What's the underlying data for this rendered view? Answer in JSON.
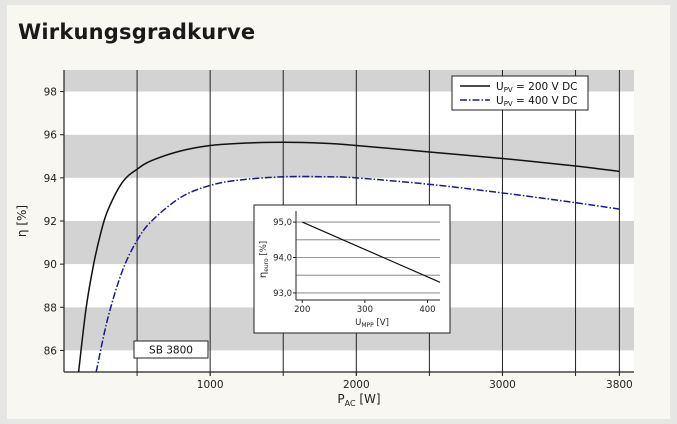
{
  "title": "Wirkungsgradkurve",
  "chart_data": [
    {
      "type": "line",
      "xlabel": "P",
      "xlabel_sub": "AC",
      "xlabel_unit": "[W]",
      "ylabel": "η [%]",
      "xlim": [
        0,
        3900
      ],
      "ylim": [
        85,
        99
      ],
      "xticks": [
        1000,
        2000,
        3000,
        3800
      ],
      "yticks": [
        86,
        88,
        90,
        92,
        94,
        96,
        98
      ],
      "grid": "vertical lines at 500 W steps, shaded horizontal bands",
      "legend": "top-right",
      "annotation": "SB 3800",
      "series": [
        {
          "name": "U_PV = 200 V DC",
          "label_main": "U",
          "label_sub": "PV",
          "label_rest": " = 200 V DC",
          "style": "solid",
          "color": "#111111",
          "x": [
            100,
            150,
            200,
            250,
            300,
            400,
            500,
            600,
            800,
            1000,
            1200,
            1500,
            1800,
            2000,
            2500,
            3000,
            3500,
            3800
          ],
          "y": [
            85.0,
            87.9,
            89.9,
            91.4,
            92.5,
            93.8,
            94.4,
            94.8,
            95.25,
            95.5,
            95.6,
            95.65,
            95.6,
            95.5,
            95.2,
            94.9,
            94.55,
            94.3
          ]
        },
        {
          "name": "U_PV = 400 V DC",
          "label_main": "U",
          "label_sub": "PV",
          "label_rest": " = 400 V DC",
          "style": "dashdot",
          "color": "#1a1a8c",
          "x": [
            220,
            300,
            400,
            500,
            600,
            800,
            1000,
            1200,
            1500,
            1800,
            2000,
            2500,
            3000,
            3500,
            3800
          ],
          "y": [
            85.0,
            87.5,
            89.7,
            91.1,
            92.0,
            93.1,
            93.65,
            93.9,
            94.05,
            94.05,
            94.0,
            93.7,
            93.3,
            92.85,
            92.55
          ]
        }
      ]
    },
    {
      "type": "line",
      "xlabel": "U",
      "xlabel_sub": "MPP",
      "xlabel_unit": "[V]",
      "ylabel": "η",
      "ylabel_sub": "euro",
      "ylabel_unit": "[%]",
      "xlim": [
        190,
        420
      ],
      "ylim": [
        92.8,
        95.2
      ],
      "xticks": [
        200,
        300,
        400
      ],
      "xtick_labels": [
        "200",
        "300",
        "400"
      ],
      "yticks": [
        93.0,
        94.0,
        95.0
      ],
      "ytick_labels": [
        "93,0",
        "94,0",
        "95,0"
      ],
      "grid": "horizontal lines at 0.5 steps",
      "series": [
        {
          "x": [
            200,
            420
          ],
          "y": [
            95.0,
            93.3
          ],
          "style": "solid",
          "color": "#111111"
        }
      ]
    }
  ]
}
